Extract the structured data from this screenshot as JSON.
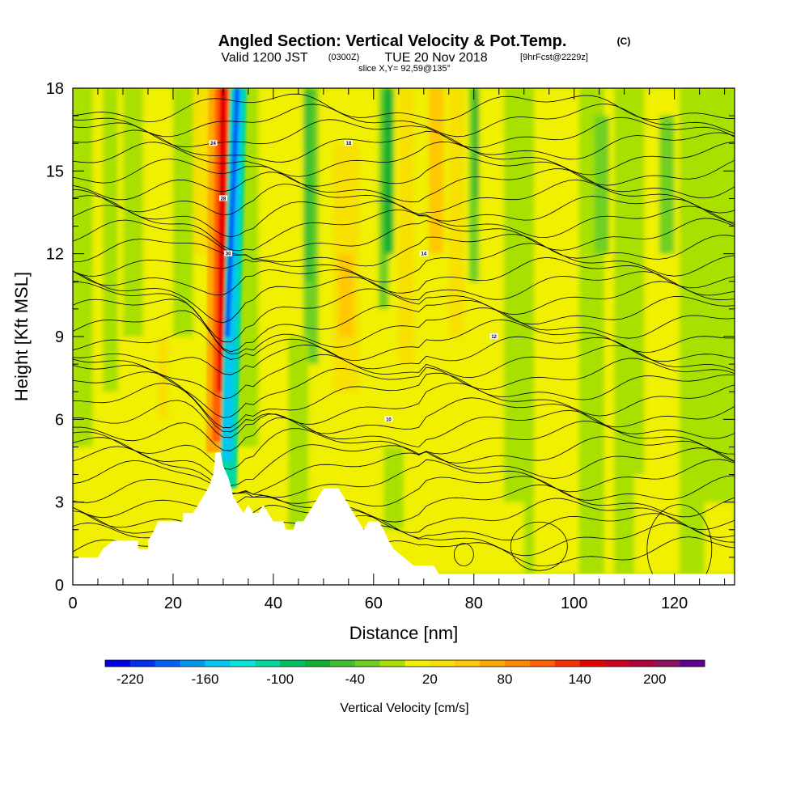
{
  "title": {
    "main": "Angled Section: Vertical Velocity & Pot.Temp.",
    "copyright": "(C)",
    "valid_prefix": "Valid 1200 JST",
    "valid_utc": "(0300Z)",
    "valid_date": "TUE 20 Nov 2018",
    "forecast": "[9hrFcst@2229z]",
    "slice": "slice X,Y= 92,59@135°"
  },
  "chart_data": {
    "type": "heatmap",
    "x_axis": {
      "label": "Distance [nm]",
      "range": [
        0,
        132
      ],
      "ticks": [
        0,
        20,
        40,
        60,
        80,
        100,
        120
      ],
      "minor_step": 5
    },
    "y_axis": {
      "label": "Height [Kft MSL]",
      "range": [
        0,
        18
      ],
      "ticks": [
        0,
        3,
        6,
        9,
        12,
        15,
        18
      ],
      "minor_step": 1
    },
    "colorbar": {
      "label": "Vertical Velocity [cm/s]",
      "range": [
        -240,
        240
      ],
      "tick_labels": [
        -220,
        -160,
        -100,
        -40,
        20,
        80,
        140,
        200
      ],
      "colors": [
        "#0000e8",
        "#0030f0",
        "#0060f8",
        "#0098f0",
        "#00c8f0",
        "#00e8d8",
        "#00d8a0",
        "#00c060",
        "#10b030",
        "#40c030",
        "#70d020",
        "#a8e000",
        "#f0f000",
        "#f8e000",
        "#ffc800",
        "#ffa800",
        "#ff8800",
        "#ff6000",
        "#f83000",
        "#e80000",
        "#d00020",
        "#b00040",
        "#901060",
        "#600090"
      ]
    },
    "terrain_kft": [
      [
        0,
        1.0
      ],
      [
        5,
        1.0
      ],
      [
        6,
        1.3
      ],
      [
        8,
        1.6
      ],
      [
        13,
        1.6
      ],
      [
        13,
        1.3
      ],
      [
        15,
        1.3
      ],
      [
        15,
        1.6
      ],
      [
        16,
        1.9
      ],
      [
        17,
        2.3
      ],
      [
        22,
        2.3
      ],
      [
        22,
        2.6
      ],
      [
        24,
        2.6
      ],
      [
        25,
        2.9
      ],
      [
        26,
        3.2
      ],
      [
        27,
        3.5
      ],
      [
        28,
        4.0
      ],
      [
        28.5,
        4.8
      ],
      [
        29.5,
        4.8
      ],
      [
        30,
        4.3
      ],
      [
        31,
        3.9
      ],
      [
        31.5,
        3.6
      ],
      [
        32,
        3.2
      ],
      [
        33,
        2.9
      ],
      [
        34,
        2.6
      ],
      [
        35,
        2.9
      ],
      [
        36,
        2.6
      ],
      [
        37,
        2.6
      ],
      [
        38,
        2.9
      ],
      [
        39,
        2.6
      ],
      [
        40,
        2.3
      ],
      [
        42,
        2.3
      ],
      [
        42.5,
        2.0
      ],
      [
        44,
        2.0
      ],
      [
        44.5,
        2.3
      ],
      [
        46,
        2.3
      ],
      [
        47,
        2.6
      ],
      [
        48,
        2.9
      ],
      [
        49,
        3.2
      ],
      [
        50,
        3.5
      ],
      [
        53,
        3.5
      ],
      [
        54,
        3.2
      ],
      [
        55,
        2.9
      ],
      [
        56,
        2.6
      ],
      [
        57,
        2.3
      ],
      [
        58,
        2.0
      ],
      [
        59,
        2.3
      ],
      [
        61,
        2.3
      ],
      [
        62,
        2.0
      ],
      [
        63,
        1.6
      ],
      [
        64,
        1.3
      ],
      [
        66,
        1.0
      ],
      [
        68,
        0.7
      ],
      [
        72,
        0.7
      ],
      [
        73,
        0.4
      ],
      [
        132,
        0.4
      ]
    ],
    "updraft_core": {
      "x_at_top": 30,
      "x_at_base": 29.5,
      "base_kft": 4.8,
      "description": "narrow red/orange updraft"
    },
    "downdraft_core": {
      "x_at_top": 33,
      "x_at_base": 31,
      "base_kft": 3.5,
      "description": "narrow blue downdraft"
    },
    "theta_labels_visible": [
      "24",
      "28",
      "30",
      "18",
      "14",
      "12",
      "10"
    ]
  }
}
